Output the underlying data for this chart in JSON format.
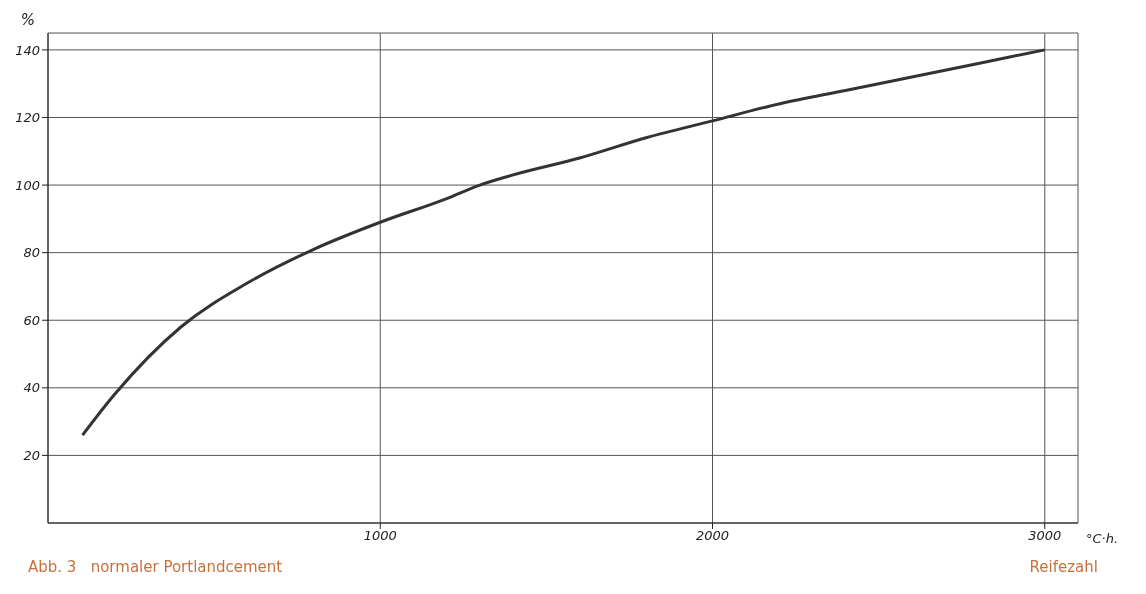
{
  "chart_data": {
    "type": "line",
    "title": "Abb. 3   normaler Portlandcement",
    "xlabel": "°C·h.",
    "ylabel": "%",
    "annotations": [
      "Reifezahl"
    ],
    "x": [
      104,
      200,
      400,
      600,
      800,
      1000,
      1200,
      1300,
      1400,
      1600,
      1800,
      2000,
      2200,
      2400,
      2600,
      2800,
      3000
    ],
    "series": [
      {
        "color": "#333333",
        "values": [
          26,
          38,
          58,
          71,
          81,
          89,
          96,
          100,
          103,
          108,
          114,
          119,
          124,
          128,
          132,
          136,
          140
        ]
      }
    ],
    "xlim": [
      0,
      3100
    ],
    "ylim": [
      0,
      145
    ],
    "xticks": [
      {
        "value": 1000,
        "label": "1000"
      },
      {
        "value": 2000,
        "label": "2000"
      },
      {
        "value": 3000,
        "label": "3000"
      }
    ],
    "yticks": [
      20,
      40,
      60,
      80,
      100,
      120,
      140
    ],
    "grid": true,
    "marker": "none",
    "line_style": "solid"
  }
}
